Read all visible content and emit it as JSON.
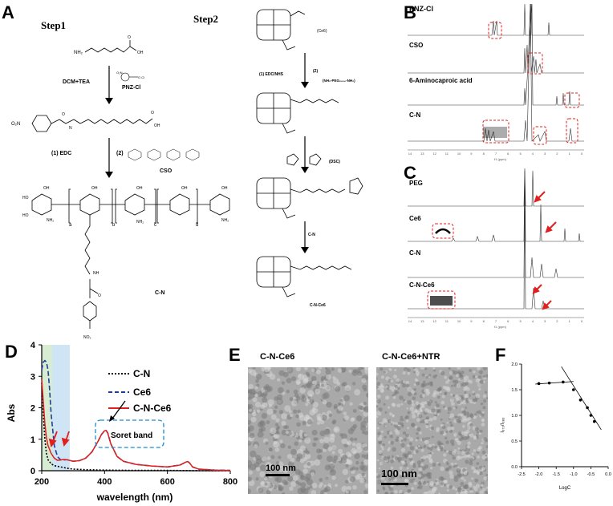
{
  "panels": {
    "A": "A",
    "B": "B",
    "C": "C",
    "D": "D",
    "E": "E",
    "F": "F"
  },
  "schemeA": {
    "step1": "Step1",
    "step2": "Step2",
    "start_formula": "NH₂",
    "reagent1": "DCM+TEA",
    "pnzcl": "PNZ-Cl",
    "edc1": "(1) EDC",
    "edc2": "(2)",
    "cso": "CSO",
    "cn_label": "C-N",
    "o2n": "O₂N",
    "no2": "NO₂",
    "sub_a": "a",
    "sub_b": "b",
    "sub_c": "c",
    "sub_d": "d",
    "ce6": "(Ce6)",
    "edcnhs": "(1) EDC/NHS",
    "step2b": "(2)",
    "peg": "(NH₂-PEG₂₀₀₀-NH₂)",
    "dsc": "(DSC)",
    "cn_arrow": "C-N",
    "cnce6": "C-N-Ce6"
  },
  "panelB": {
    "labels": [
      "PNZ-Cl",
      "CSO",
      "6-Aminocaproic acid",
      "C-N"
    ],
    "xticks": [
      "14",
      "13",
      "12",
      "11",
      "10",
      "9",
      "8",
      "7",
      "6",
      "5",
      "4",
      "3",
      "2",
      "1",
      "0"
    ],
    "xlabel": "f1 (ppm)"
  },
  "panelC": {
    "labels": [
      "PEG",
      "Ce6",
      "C-N",
      "C-N-Ce6"
    ],
    "xticks": [
      "14",
      "13",
      "12",
      "11",
      "10",
      "9",
      "8",
      "7",
      "6",
      "5",
      "4",
      "3",
      "2",
      "1",
      "0"
    ],
    "xlabel": "f1 (ppm)"
  },
  "panelE": {
    "left": "C-N-Ce6",
    "right": "C-N-Ce6+NTR",
    "scale_left": "100 nm",
    "scale_right": "100 nm"
  },
  "colors": {
    "cn": "#000000",
    "ce6": "#1f3f9f",
    "cnce6": "#e0201e",
    "highlight_green": "#d7ecd3",
    "highlight_blue": "#cfe4f5",
    "dashed_red": "#e0201e",
    "dashed_blue": "#1a8fd0"
  },
  "chart_data": [
    {
      "type": "line",
      "title": "",
      "xlabel": "wavelength (nm)",
      "ylabel": "Abs",
      "xlim": [
        200,
        800
      ],
      "ylim": [
        0,
        4
      ],
      "xticks": [
        "200",
        "400",
        "600",
        "800"
      ],
      "yticks": [
        "0",
        "1",
        "2",
        "3",
        "4"
      ],
      "annotation": "Soret band",
      "series": [
        {
          "name": "C-N",
          "x": [
            200,
            205,
            210,
            215,
            220,
            230,
            240,
            260,
            280,
            300,
            350,
            400,
            500,
            600,
            700,
            800
          ],
          "y": [
            2.8,
            1.8,
            1.0,
            0.55,
            0.35,
            0.22,
            0.16,
            0.12,
            0.08,
            0.05,
            0.03,
            0.02,
            0.01,
            0.01,
            0.0,
            0.0
          ]
        },
        {
          "name": "Ce6",
          "x": [
            200,
            205,
            210,
            215,
            220,
            225,
            230,
            240,
            250,
            260,
            270,
            280,
            300,
            320,
            340,
            360,
            380,
            390,
            400,
            405,
            410,
            420,
            440,
            460,
            500,
            550,
            600,
            640,
            660,
            665,
            670,
            680,
            700,
            750,
            800
          ],
          "y": [
            3.2,
            3.45,
            3.5,
            3.45,
            3.2,
            2.6,
            1.8,
            0.8,
            0.45,
            0.35,
            0.34,
            0.35,
            0.3,
            0.32,
            0.4,
            0.6,
            0.95,
            1.15,
            1.27,
            1.28,
            1.2,
            0.85,
            0.45,
            0.3,
            0.2,
            0.15,
            0.12,
            0.18,
            0.28,
            0.29,
            0.25,
            0.12,
            0.05,
            0.02,
            0.01
          ]
        },
        {
          "name": "C-N-Ce6",
          "x": [
            200,
            205,
            210,
            215,
            220,
            230,
            240,
            250,
            260,
            270,
            280,
            300,
            320,
            340,
            360,
            380,
            390,
            400,
            405,
            410,
            420,
            440,
            460,
            500,
            550,
            600,
            640,
            660,
            665,
            670,
            680,
            700,
            750,
            800
          ],
          "y": [
            2.9,
            2.2,
            1.5,
            1.05,
            0.8,
            0.55,
            0.4,
            0.33,
            0.34,
            0.36,
            0.35,
            0.3,
            0.32,
            0.4,
            0.6,
            0.95,
            1.15,
            1.27,
            1.28,
            1.2,
            0.85,
            0.45,
            0.3,
            0.2,
            0.15,
            0.12,
            0.18,
            0.28,
            0.29,
            0.25,
            0.12,
            0.05,
            0.02,
            0.01
          ]
        }
      ]
    },
    {
      "type": "scatter",
      "title": "",
      "xlabel": "LogC",
      "ylabel": "I₃₇₂/I₃₈₃",
      "xlim": [
        -2.5,
        0.0
      ],
      "ylim": [
        0.0,
        2.0
      ],
      "xticks": [
        "-2.5",
        "-2.0",
        "-1.5",
        "-1.0",
        "-0.5",
        "0.0"
      ],
      "yticks": [
        "0.0",
        "0.5",
        "1.0",
        "1.5",
        "2.0"
      ],
      "series": [
        {
          "name": "",
          "x": [
            -2.0,
            -1.7,
            -1.3,
            -1.0,
            -0.8,
            -0.6,
            -0.5,
            -0.4
          ],
          "y": [
            1.62,
            1.63,
            1.65,
            1.5,
            1.3,
            1.15,
            1.0,
            0.88
          ]
        }
      ]
    }
  ]
}
